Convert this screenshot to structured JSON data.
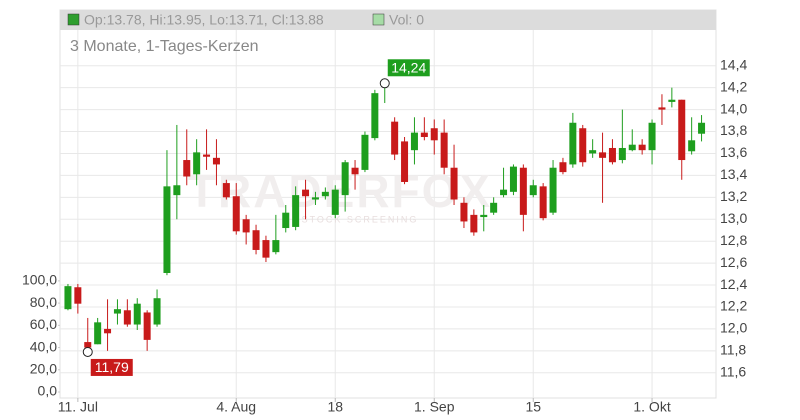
{
  "chart_data": {
    "type": "candlestick",
    "subtitle": "3 Monate, 1-Tages-Kerzen",
    "legend": [
      "Op:13.78, Hi:13.95, Lo:13.71, Cl:13.88",
      "Vol: 0"
    ],
    "watermark": [
      "TRADERFOX",
      "STOCK SCREENING"
    ],
    "up_color": "#1e9e1e",
    "down_color": "#c81a1a",
    "categories": [
      null,
      "11. Jul",
      null,
      null,
      null,
      null,
      null,
      null,
      null,
      null,
      null,
      null,
      null,
      null,
      null,
      null,
      null,
      "4. Aug",
      null,
      null,
      null,
      null,
      null,
      null,
      null,
      null,
      null,
      "18",
      null,
      null,
      null,
      null,
      null,
      null,
      null,
      null,
      null,
      "1. Sep",
      null,
      null,
      null,
      null,
      null,
      null,
      null,
      null,
      null,
      "15",
      null,
      null,
      null,
      null,
      null,
      null,
      null,
      null,
      null,
      null,
      null,
      "1. Okt",
      null,
      null,
      null,
      null,
      null
    ],
    "open": [
      12.18,
      12.38,
      11.88,
      11.86,
      12.0,
      12.14,
      12.17,
      12.04,
      12.15,
      12.04,
      12.51,
      13.22,
      13.54,
      13.41,
      13.59,
      13.56,
      13.33,
      13.21,
      13.0,
      12.9,
      12.81,
      12.7,
      12.92,
      12.93,
      13.27,
      13.18,
      13.21,
      13.04,
      13.22,
      13.47,
      13.45,
      13.74,
      14.21,
      13.89,
      13.71,
      13.63,
      13.79,
      13.83,
      13.79,
      13.47,
      13.15,
      13.04,
      13.02,
      13.06,
      13.22,
      13.25,
      13.47,
      13.22,
      13.3,
      13.06,
      13.52,
      13.5,
      13.83,
      13.6,
      13.61,
      13.65,
      13.54,
      13.63,
      13.68,
      13.63,
      14.02,
      14.07,
      14.09,
      13.62,
      13.78
    ],
    "high": [
      12.41,
      12.41,
      12.1,
      12.1,
      12.27,
      12.27,
      12.27,
      12.28,
      12.17,
      12.36,
      13.63,
      13.86,
      13.82,
      13.73,
      13.82,
      13.73,
      13.36,
      13.33,
      13.04,
      12.95,
      12.85,
      13.04,
      13.13,
      13.3,
      13.36,
      13.25,
      13.29,
      13.31,
      13.54,
      13.54,
      13.8,
      14.18,
      14.24,
      13.93,
      13.75,
      13.93,
      13.93,
      13.91,
      13.91,
      13.68,
      13.2,
      13.09,
      13.13,
      13.2,
      13.47,
      13.5,
      13.5,
      13.36,
      13.33,
      13.54,
      13.56,
      13.97,
      13.86,
      13.73,
      13.79,
      13.73,
      14.0,
      13.82,
      13.73,
      13.91,
      14.14,
      14.2,
      14.09,
      13.93,
      13.95
    ],
    "low": [
      12.17,
      12.14,
      11.79,
      11.86,
      11.8,
      12.04,
      12.02,
      11.99,
      11.8,
      12.02,
      12.49,
      13.0,
      13.31,
      13.31,
      13.45,
      13.31,
      13.18,
      12.86,
      12.77,
      12.68,
      12.61,
      12.68,
      12.88,
      12.9,
      13.0,
      13.13,
      13.18,
      13.01,
      13.07,
      13.27,
      13.43,
      13.72,
      14.06,
      13.54,
      13.32,
      13.5,
      13.72,
      13.59,
      13.41,
      13.13,
      12.92,
      12.85,
      12.89,
      13.04,
      13.2,
      13.22,
      12.89,
      13.2,
      12.99,
      13.04,
      13.41,
      13.47,
      13.48,
      13.56,
      13.15,
      13.5,
      13.51,
      13.62,
      13.59,
      13.5,
      13.86,
      14.02,
      13.36,
      13.59,
      13.71
    ],
    "close": [
      12.39,
      12.23,
      11.83,
      12.06,
      11.96,
      12.18,
      12.04,
      12.23,
      11.9,
      12.28,
      13.3,
      13.31,
      13.39,
      13.61,
      13.57,
      13.5,
      13.2,
      12.89,
      12.88,
      12.72,
      12.65,
      12.81,
      13.06,
      13.22,
      13.21,
      13.2,
      13.25,
      13.27,
      13.52,
      13.41,
      13.77,
      14.15,
      14.23,
      13.59,
      13.34,
      13.79,
      13.75,
      13.72,
      13.47,
      13.18,
      12.98,
      12.88,
      13.04,
      13.15,
      13.27,
      13.48,
      13.04,
      13.31,
      13.01,
      13.47,
      13.43,
      13.88,
      13.52,
      13.63,
      13.56,
      13.52,
      13.65,
      13.68,
      13.63,
      13.88,
      14.0,
      14.09,
      13.54,
      13.72,
      13.88
    ],
    "annotations": [
      {
        "label": "14,24",
        "value": 14.24
      },
      {
        "label": "11,79",
        "value": 11.79
      }
    ],
    "ylim": [
      11.37,
      14.89
    ],
    "yticks": [
      {
        "value": 11.6,
        "label": "11,6"
      },
      {
        "value": 11.8,
        "label": "11,8"
      },
      {
        "value": 12.0,
        "label": "12,0"
      },
      {
        "value": 12.2,
        "label": "12,2"
      },
      {
        "value": 12.4,
        "label": "12,4"
      },
      {
        "value": 12.6,
        "label": "12,6"
      },
      {
        "value": 12.8,
        "label": "12,8"
      },
      {
        "value": 13.0,
        "label": "13,0"
      },
      {
        "value": 13.2,
        "label": "13,2"
      },
      {
        "value": 13.4,
        "label": "13,4"
      },
      {
        "value": 13.6,
        "label": "13,6"
      },
      {
        "value": 13.8,
        "label": "13,8"
      },
      {
        "value": 14.0,
        "label": "14,0"
      },
      {
        "value": 14.2,
        "label": "14,2"
      },
      {
        "value": 14.4,
        "label": "14,4"
      }
    ],
    "y2lim": [
      -5.4,
      342
    ],
    "y2ticks": [
      {
        "value": 0,
        "label": "0,0"
      },
      {
        "value": 20,
        "label": "20,0"
      },
      {
        "value": 40,
        "label": "40,0"
      },
      {
        "value": 60,
        "label": "60,0"
      },
      {
        "value": 80,
        "label": "80,0"
      },
      {
        "value": 100,
        "label": "100,0"
      }
    ],
    "grid": true
  }
}
